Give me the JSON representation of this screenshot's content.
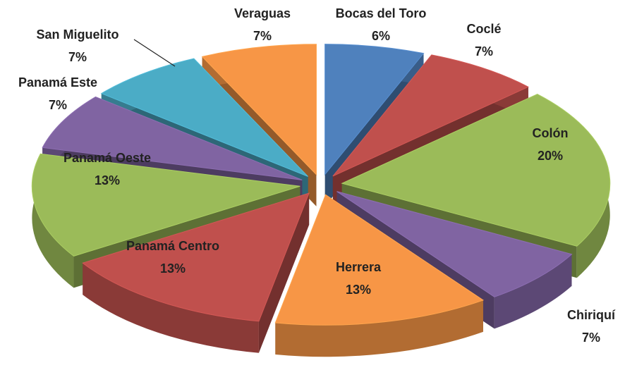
{
  "chart_data": {
    "type": "pie3d",
    "categories": [
      "Bocas del Toro",
      "Coclé",
      "Colón",
      "Chiriquí",
      "Herrera",
      "Panamá Centro",
      "Panamá Oeste",
      "Panamá Este",
      "San Miguelito",
      "Veraguas"
    ],
    "values": [
      6,
      7,
      20,
      7,
      13,
      13,
      13,
      7,
      7,
      7
    ],
    "value_labels": [
      "6%",
      "7%",
      "20%",
      "7%",
      "13%",
      "13%",
      "13%",
      "7%",
      "7%",
      "7%"
    ],
    "colors": [
      "#4f81bd",
      "#c0504d",
      "#9bbb59",
      "#8064a2",
      "#f79646",
      "#c0504d",
      "#9bbb59",
      "#8064a2",
      "#4bacc6",
      "#f79646"
    ]
  }
}
